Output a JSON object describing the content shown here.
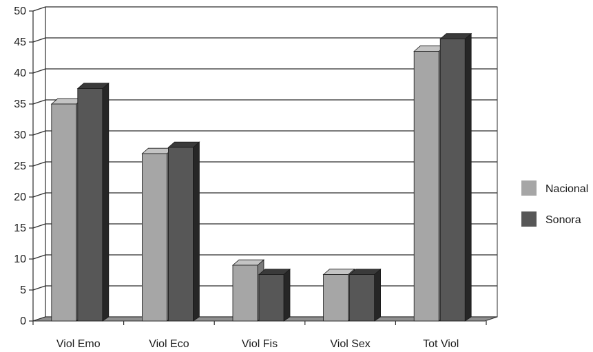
{
  "chart_data": {
    "type": "bar",
    "categories": [
      "Viol Emo",
      "Viol Eco",
      "Viol Fis",
      "Viol Sex",
      "Tot Viol"
    ],
    "series": [
      {
        "name": "Nacional",
        "values": [
          35.0,
          27.0,
          9.0,
          7.5,
          43.5
        ]
      },
      {
        "name": "Sonora",
        "values": [
          37.5,
          28.0,
          7.5,
          7.5,
          45.5
        ]
      }
    ],
    "ylim": [
      0,
      50
    ],
    "yticks": [
      "0",
      "5",
      "10",
      "15",
      "20",
      "25",
      "30",
      "35",
      "40",
      "45",
      "50"
    ],
    "grid": true,
    "legend_position": "right",
    "colors": {
      "Nacional": {
        "front": "#a6a6a6",
        "side": "#7a7a7a",
        "top": "#c4c4c4"
      },
      "Sonora": {
        "front": "#575757",
        "side": "#262626",
        "top": "#3a3a3a"
      },
      "grid": "#2b2b2b",
      "floor": "#8f8f8f"
    }
  }
}
